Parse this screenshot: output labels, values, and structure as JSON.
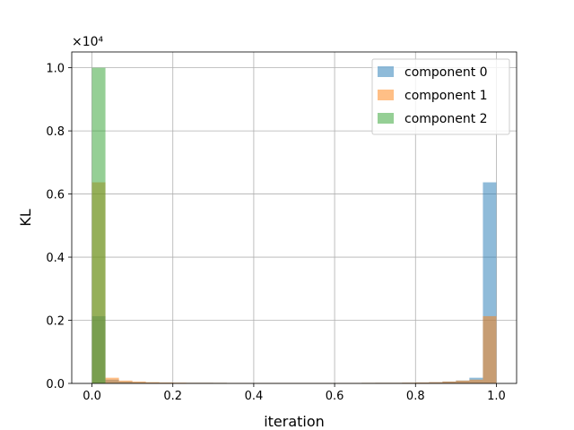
{
  "chart_data": {
    "type": "bar",
    "title": "",
    "xlabel": "iteration",
    "ylabel": "KL",
    "offset_text": "×10⁴",
    "xlim": [
      -0.05,
      1.05
    ],
    "ylim": [
      0,
      10500
    ],
    "x_ticks": [
      0.0,
      0.2,
      0.4,
      0.6,
      0.8,
      1.0
    ],
    "x_tick_labels": [
      "0.0",
      "0.2",
      "0.4",
      "0.6",
      "0.8",
      "1.0"
    ],
    "y_ticks": [
      0,
      2000,
      4000,
      6000,
      8000,
      10000
    ],
    "y_tick_labels": [
      "0.0",
      "0.2",
      "0.4",
      "0.6",
      "0.8",
      "1.0"
    ],
    "grid": true,
    "legend_position": "top-right",
    "bin_edges": [
      0.0,
      0.0333,
      0.0667,
      0.1,
      0.1333,
      0.1667,
      0.2,
      0.2333,
      0.2667,
      0.3,
      0.3333,
      0.3667,
      0.4,
      0.4333,
      0.4667,
      0.5,
      0.5333,
      0.5667,
      0.6,
      0.6333,
      0.6667,
      0.7,
      0.7333,
      0.7667,
      0.8,
      0.8333,
      0.8667,
      0.9,
      0.9333,
      0.9667,
      1.0
    ],
    "series": [
      {
        "name": "component 0",
        "color": "#1f77b4",
        "values": [
          2130,
          120,
          60,
          40,
          30,
          25,
          20,
          20,
          20,
          18,
          15,
          15,
          15,
          15,
          15,
          15,
          15,
          15,
          15,
          15,
          18,
          20,
          20,
          25,
          30,
          40,
          60,
          90,
          180,
          6370
        ]
      },
      {
        "name": "component 1",
        "color": "#ff7f0e",
        "values": [
          6370,
          180,
          90,
          60,
          40,
          30,
          25,
          20,
          20,
          18,
          15,
          15,
          15,
          15,
          15,
          15,
          15,
          15,
          15,
          15,
          18,
          20,
          20,
          25,
          30,
          40,
          60,
          90,
          120,
          2130
        ]
      },
      {
        "name": "component 2",
        "color": "#2ca02c",
        "values": [
          10000,
          10,
          5,
          3,
          2,
          2,
          1,
          1,
          1,
          1,
          1,
          1,
          1,
          1,
          1,
          1,
          1,
          1,
          1,
          1,
          1,
          1,
          1,
          1,
          1,
          1,
          1,
          1,
          1,
          0
        ]
      }
    ]
  }
}
